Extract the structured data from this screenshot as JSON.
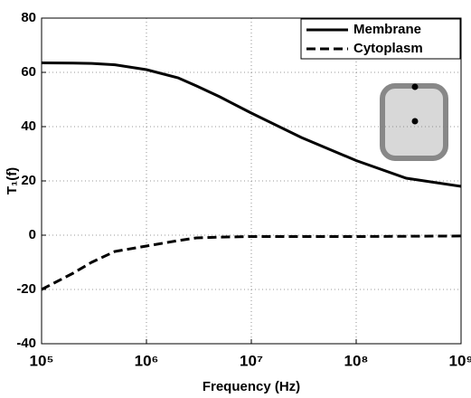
{
  "chart_data": {
    "type": "line",
    "xlabel": "Frequency (Hz)",
    "ylabel": "T₁(f)",
    "x": [
      100000,
      200000,
      300000,
      500000,
      1000000,
      2000000,
      3000000,
      5000000,
      10000000,
      30000000,
      100000000,
      300000000,
      1000000000
    ],
    "series": [
      {
        "name": "Membrane",
        "color": "#000000",
        "dash": "solid",
        "values": [
          63.5,
          63.4,
          63.3,
          62.8,
          61,
          58,
          55,
          51,
          45,
          36,
          27.5,
          21,
          18
        ]
      },
      {
        "name": "Cytoplasm",
        "color": "#000000",
        "dash": "dashed",
        "values": [
          -20,
          -14,
          -10,
          -6,
          -4,
          -2,
          -1,
          -0.7,
          -0.5,
          -0.5,
          -0.5,
          -0.4,
          -0.3
        ]
      }
    ],
    "xscale": "log",
    "xlim": [
      100000,
      1000000000
    ],
    "xticks": [
      {
        "value": 100000,
        "label": "10⁵"
      },
      {
        "value": 1000000,
        "label": "10⁶"
      },
      {
        "value": 10000000,
        "label": "10⁷"
      },
      {
        "value": 100000000,
        "label": "10⁸"
      },
      {
        "value": 1000000000,
        "label": "10⁹"
      }
    ],
    "ylim": [
      -40,
      80
    ],
    "yticks": [
      -40,
      -20,
      0,
      20,
      40,
      60,
      80
    ],
    "grid": true,
    "legend": "upper-right"
  }
}
